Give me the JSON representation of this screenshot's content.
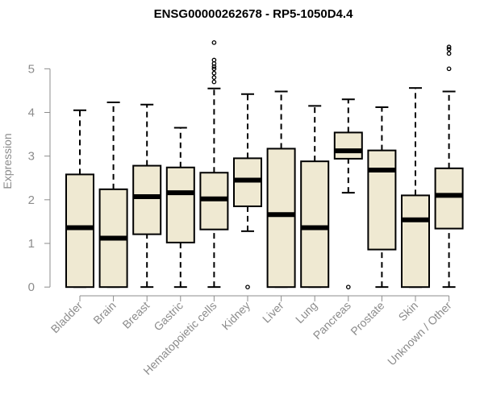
{
  "chart_data": {
    "type": "box",
    "title": "ENSG00000262678 - RP5-1050D4.4",
    "xlabel": "",
    "ylabel": "Expression",
    "ylim": [
      -0.2,
      5.8
    ],
    "yticks": [
      0,
      1,
      2,
      3,
      4,
      5
    ],
    "box_fill": "#efe9d2",
    "line_color": "#000000",
    "axis_color": "#8c8c8c",
    "boxes": [
      {
        "category": "Bladder",
        "whisker_low": 0,
        "q1": 0,
        "median": 1.36,
        "q3": 2.58,
        "whisker_high": 4.05,
        "outliers": []
      },
      {
        "category": "Brain",
        "whisker_low": 0,
        "q1": 0,
        "median": 1.12,
        "q3": 2.24,
        "whisker_high": 4.23,
        "outliers": []
      },
      {
        "category": "Breast",
        "whisker_low": 0,
        "q1": 1.21,
        "median": 2.07,
        "q3": 2.78,
        "whisker_high": 4.18,
        "outliers": []
      },
      {
        "category": "Gastric",
        "whisker_low": 0,
        "q1": 1.02,
        "median": 2.16,
        "q3": 2.74,
        "whisker_high": 3.65,
        "outliers": []
      },
      {
        "category": "Hematopoietic cells",
        "whisker_low": 0,
        "q1": 1.32,
        "median": 2.02,
        "q3": 2.62,
        "whisker_high": 4.55,
        "outliers": [
          4.7,
          4.8,
          4.9,
          5.0,
          5.05,
          5.12,
          5.2,
          5.6
        ]
      },
      {
        "category": "Kidney",
        "whisker_low": 1.28,
        "q1": 1.85,
        "median": 2.45,
        "q3": 2.95,
        "whisker_high": 4.42,
        "outliers": [
          0
        ]
      },
      {
        "category": "Liver",
        "whisker_low": 0,
        "q1": 0,
        "median": 1.66,
        "q3": 3.17,
        "whisker_high": 4.48,
        "outliers": []
      },
      {
        "category": "Lung",
        "whisker_low": 0,
        "q1": 0,
        "median": 1.36,
        "q3": 2.88,
        "whisker_high": 4.15,
        "outliers": []
      },
      {
        "category": "Pancreas",
        "whisker_low": 2.16,
        "q1": 2.94,
        "median": 3.12,
        "q3": 3.54,
        "whisker_high": 4.3,
        "outliers": [
          0
        ]
      },
      {
        "category": "Prostate",
        "whisker_low": 0,
        "q1": 0.86,
        "median": 2.68,
        "q3": 3.13,
        "whisker_high": 4.12,
        "outliers": []
      },
      {
        "category": "Skin",
        "whisker_low": 0,
        "q1": 0,
        "median": 1.54,
        "q3": 2.1,
        "whisker_high": 4.56,
        "outliers": []
      },
      {
        "category": "Unknown / Other",
        "whisker_low": 0,
        "q1": 1.34,
        "median": 2.1,
        "q3": 2.72,
        "whisker_high": 4.48,
        "outliers": [
          5.0,
          5.35,
          5.45,
          5.5
        ]
      }
    ]
  }
}
